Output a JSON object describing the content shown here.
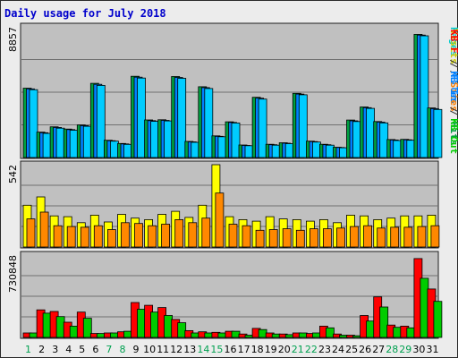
{
  "title": "Daily usage for July 2018",
  "chart_data": {
    "type": "bar",
    "title": "Daily usage for July 2018",
    "categories": [
      "1",
      "2",
      "3",
      "4",
      "5",
      "6",
      "7",
      "8",
      "9",
      "10",
      "11",
      "12",
      "13",
      "14",
      "15",
      "16",
      "17",
      "18",
      "19",
      "20",
      "21",
      "22",
      "23",
      "24",
      "25",
      "26",
      "27",
      "28",
      "29",
      "30",
      "31"
    ],
    "weekend_days": [
      "1",
      "7",
      "8",
      "14",
      "15",
      "21",
      "22",
      "28",
      "29"
    ],
    "panels": [
      {
        "name": "pages-files-hits",
        "ymax_label": "8857",
        "ylim": [
          0,
          8857
        ],
        "axis_label_parts": [
          {
            "text": "Pages",
            "color": "#00cccc"
          },
          {
            "text": " / ",
            "color": "#303030"
          },
          {
            "text": "Files",
            "color": "#0080ff"
          },
          {
            "text": " / ",
            "color": "#303030"
          },
          {
            "text": "Hits",
            "color": "#00a040"
          }
        ],
        "series": [
          {
            "name": "Hits",
            "color": "#00a040",
            "values": [
              4700,
              1720,
              2080,
              1930,
              2210,
              5030,
              1170,
              950,
              5510,
              2550,
              2560,
              5490,
              1090,
              4800,
              1470,
              2420,
              850,
              4080,
              900,
              1000,
              4350,
              1110,
              900,
              700,
              2540,
              3430,
              2440,
              1220,
              1230,
              8350,
              3360
            ]
          },
          {
            "name": "Files",
            "color": "#0080ff",
            "values": [
              4650,
              1680,
              2040,
              1890,
              2160,
              4960,
              1140,
              920,
              5450,
              2500,
              2520,
              5430,
              1060,
              4740,
              1440,
              2380,
              820,
              4020,
              870,
              970,
              4300,
              1080,
              870,
              680,
              2490,
              3380,
              2400,
              1190,
              1200,
              8300,
              3310
            ]
          },
          {
            "name": "Pages",
            "color": "#00ccff",
            "values": [
              4600,
              1640,
              1990,
              1850,
              2120,
              4890,
              1110,
              890,
              5390,
              2450,
              2480,
              5370,
              1030,
              4680,
              1410,
              2340,
              800,
              3960,
              840,
              940,
              4250,
              1050,
              840,
              660,
              2440,
              3330,
              2350,
              1150,
              1170,
              8250,
              3260
            ]
          }
        ]
      },
      {
        "name": "visits-sites",
        "ymax_label": "542",
        "ylim": [
          0,
          542
        ],
        "axis_label_parts": [
          {
            "text": "Visits",
            "color": "#cccc00"
          },
          {
            "text": " / ",
            "color": "#303030"
          },
          {
            "text": "Sites",
            "color": "#ff8000"
          }
        ],
        "series": [
          {
            "name": "Visits",
            "color": "#ffff00",
            "values": [
              275,
              330,
              205,
              200,
              160,
              210,
              165,
              215,
              190,
              180,
              215,
              235,
              195,
              275,
              542,
              200,
              180,
              170,
              200,
              185,
              180,
              170,
              180,
              160,
              210,
              205,
              180,
              190,
              205,
              205,
              210
            ]
          },
          {
            "name": "Sites",
            "color": "#ff8800",
            "values": [
              185,
              230,
              140,
              135,
              130,
              140,
              115,
              160,
              155,
              140,
              150,
              180,
              160,
              190,
              355,
              150,
              140,
              110,
              115,
              120,
              110,
              120,
              120,
              125,
              135,
              140,
              125,
              130,
              130,
              135,
              140
            ]
          }
        ]
      },
      {
        "name": "kbf-kbin-kbout",
        "ymax_label": "730848",
        "ylim": [
          0,
          730848
        ],
        "axis_label_parts": [
          {
            "text": "KB F",
            "color": "#ff0000"
          },
          {
            "text": " / ",
            "color": "#303030"
          },
          {
            "text": "KB In",
            "color": "#0080ff"
          },
          {
            "text": " / ",
            "color": "#303030"
          },
          {
            "text": "KB Out",
            "color": "#00cc00"
          }
        ],
        "series": [
          {
            "name": "KB F",
            "color": "#ff0000",
            "values": [
              40000,
              245000,
              230000,
              135000,
              225000,
              35000,
              40000,
              50000,
              310000,
              285000,
              265000,
              160000,
              60000,
              50000,
              45000,
              55000,
              30000,
              80000,
              40000,
              30000,
              40000,
              35000,
              100000,
              30000,
              20000,
              195000,
              360000,
              110000,
              100000,
              700000,
              430000
            ]
          },
          {
            "name": "KB In",
            "color": "#0080ff",
            "values": [
              0,
              0,
              0,
              0,
              0,
              0,
              0,
              0,
              0,
              0,
              0,
              0,
              0,
              0,
              0,
              0,
              0,
              0,
              0,
              0,
              0,
              0,
              0,
              0,
              0,
              0,
              0,
              0,
              0,
              0,
              0
            ]
          },
          {
            "name": "KB Out",
            "color": "#00cc00",
            "values": [
              40000,
              215000,
              185000,
              100000,
              170000,
              35000,
              40000,
              55000,
              250000,
              225000,
              195000,
              130000,
              40000,
              40000,
              40000,
              55000,
              20000,
              70000,
              30000,
              25000,
              40000,
              40000,
              85000,
              20000,
              15000,
              145000,
              270000,
              90000,
              85000,
              525000,
              320000
            ]
          }
        ]
      }
    ]
  }
}
